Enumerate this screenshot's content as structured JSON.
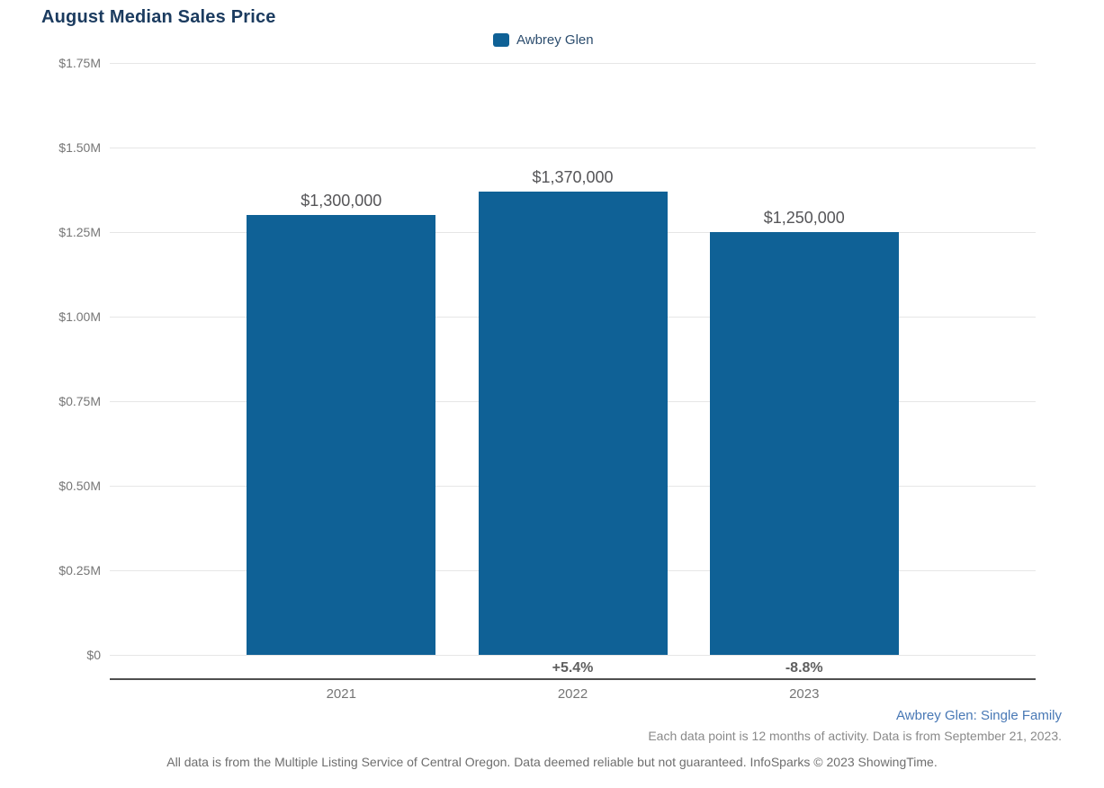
{
  "header": {
    "title": "August Median Sales Price",
    "title_color": "#1B3B5F"
  },
  "legend": {
    "position": "top-center",
    "items": [
      {
        "label": "Awbrey Glen",
        "color": "#0F6196"
      }
    ]
  },
  "chart_data": {
    "type": "bar",
    "title": "August Median Sales Price",
    "categories": [
      "2021",
      "2022",
      "2023"
    ],
    "series": [
      {
        "name": "Awbrey Glen",
        "values": [
          1300000,
          1370000,
          1250000
        ]
      }
    ],
    "value_labels": [
      "$1,300,000",
      "$1,370,000",
      "$1,250,000"
    ],
    "pct_change_labels": [
      "",
      "+5.4%",
      "-8.8%"
    ],
    "y_ticks": [
      "$0",
      "$0.25M",
      "$0.50M",
      "$0.75M",
      "$1.00M",
      "$1.25M",
      "$1.50M",
      "$1.75M"
    ],
    "y_tick_values": [
      0,
      250000,
      500000,
      750000,
      1000000,
      1250000,
      1500000,
      1750000
    ],
    "ylim": [
      0,
      1750000
    ],
    "xlabel": "",
    "ylabel": "",
    "bar_color": "#0F6196",
    "grid": true,
    "gridline_color": "#E6E6E6",
    "axis_line_color": "#4F4F4F",
    "legend_position": "top-center"
  },
  "footer": {
    "series_note": "Awbrey Glen: Single Family",
    "data_note": "Each data point is 12 months of activity. Data is from September 21, 2023.",
    "disclaimer": "All data is from the Multiple Listing Service of Central Oregon. Data deemed reliable but not guaranteed. InfoSparks © 2023 ShowingTime."
  }
}
